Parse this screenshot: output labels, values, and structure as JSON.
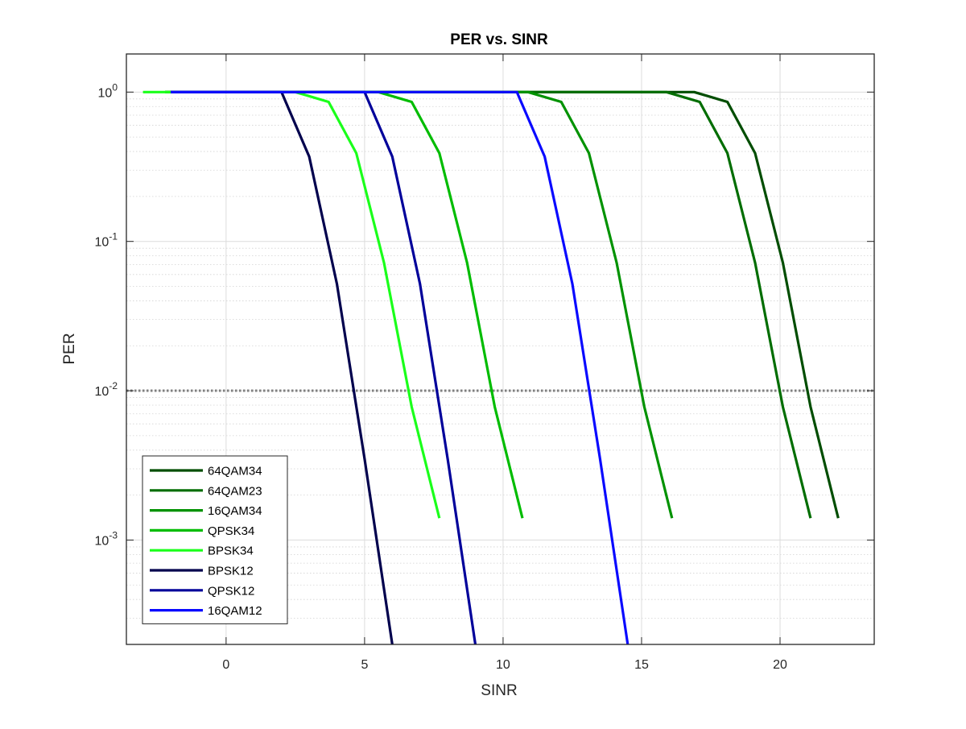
{
  "chart_data": {
    "type": "line",
    "title": "PER vs. SINR",
    "xlabel": "SINR",
    "ylabel": "PER",
    "xlim": [
      -3.6,
      23.4
    ],
    "ylim": [
      0.0002,
      1.8
    ],
    "yscale": "log",
    "grid": true,
    "minor_grid": true,
    "legend_position": "bottom-left",
    "x_ticks": [
      0,
      5,
      10,
      15,
      20
    ],
    "x_tick_labels": [
      "0",
      "5",
      "10",
      "15",
      "20"
    ],
    "y_ticks": [
      1,
      0.1,
      0.01,
      0.001
    ],
    "y_tick_labels": [
      {
        "base": "10",
        "exp": "0"
      },
      {
        "base": "10",
        "exp": "-1"
      },
      {
        "base": "10",
        "exp": "-2"
      },
      {
        "base": "10",
        "exp": "-3"
      }
    ],
    "reference_line": {
      "y": 0.01,
      "style": "dotted",
      "color": "#808080"
    },
    "series": [
      {
        "name": "64QAM34",
        "color": "#004d00",
        "x": [
          -2.2,
          16.9,
          18.1,
          19.1,
          20.1,
          21.1,
          22.1
        ],
        "y": [
          1,
          1,
          0.86,
          0.39,
          0.072,
          0.0078,
          0.0014
        ]
      },
      {
        "name": "64QAM23",
        "color": "#006d00",
        "x": [
          -2.2,
          15.9,
          17.1,
          18.1,
          19.1,
          20.1,
          21.1
        ],
        "y": [
          1,
          1,
          0.86,
          0.39,
          0.072,
          0.0078,
          0.0014
        ]
      },
      {
        "name": "16QAM34",
        "color": "#009200",
        "x": [
          -2.2,
          10.9,
          12.1,
          13.1,
          14.1,
          15.1,
          16.1
        ],
        "y": [
          1,
          1,
          0.86,
          0.39,
          0.072,
          0.0078,
          0.0014
        ]
      },
      {
        "name": "QPSK34",
        "color": "#00bc00",
        "x": [
          -2.2,
          5.5,
          6.7,
          7.7,
          8.7,
          9.7,
          10.7
        ],
        "y": [
          1,
          1,
          0.86,
          0.39,
          0.072,
          0.0078,
          0.0014
        ]
      },
      {
        "name": "BPSK34",
        "color": "#1aff1a",
        "x": [
          -3.0,
          2.5,
          3.7,
          4.7,
          5.7,
          6.7,
          7.7
        ],
        "y": [
          1,
          1,
          0.86,
          0.39,
          0.072,
          0.0078,
          0.0014
        ]
      },
      {
        "name": "BPSK12",
        "color": "#00004d",
        "x": [
          -2.0,
          2.0,
          3.0,
          4.0,
          5.0,
          6.0
        ],
        "y": [
          1,
          1,
          0.37,
          0.052,
          0.0035,
          0.0002
        ]
      },
      {
        "name": "QPSK12",
        "color": "#00009a",
        "x": [
          -2.0,
          5.0,
          6.0,
          7.0,
          8.0,
          9.0
        ],
        "y": [
          1,
          1,
          0.37,
          0.052,
          0.0035,
          0.0002
        ]
      },
      {
        "name": "16QAM12",
        "color": "#0a0aff",
        "x": [
          -2.0,
          10.5,
          11.5,
          12.5,
          13.5,
          14.5
        ],
        "y": [
          1,
          1,
          0.37,
          0.052,
          0.0035,
          0.0002
        ]
      }
    ]
  }
}
